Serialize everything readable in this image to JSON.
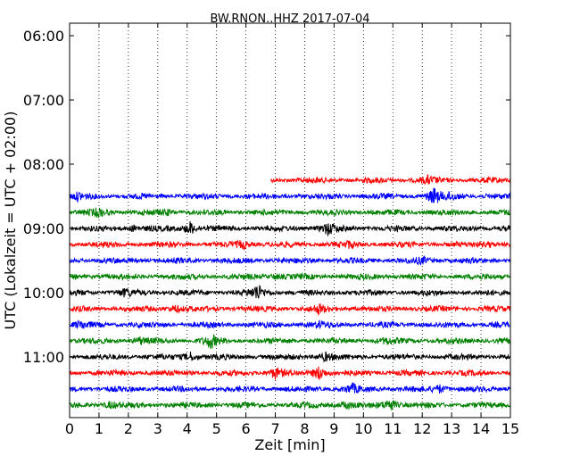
{
  "chart_data": {
    "type": "line",
    "title": "BW.RNON..HHZ 2017-07-04",
    "xlabel": "Zeit  [min]",
    "ylabel": "UTC (Lokalzeit = UTC + 02:00)",
    "xlim": [
      0,
      15
    ],
    "x_ticks": [
      "0",
      "1",
      "2",
      "3",
      "4",
      "5",
      "6",
      "7",
      "8",
      "9",
      "10",
      "11",
      "12",
      "13",
      "14",
      "15"
    ],
    "y_ticks": [
      "06:00",
      "07:00",
      "08:00",
      "09:00",
      "10:00",
      "11:00"
    ],
    "grid": "vertical dotted",
    "trace_colors": [
      "#ff0000",
      "#0000ff",
      "#008000",
      "#000000"
    ],
    "series": [
      {
        "start": "08:15",
        "x_start": 6.85,
        "x_end": 15,
        "color": "#ff0000",
        "events": [
          [
            12.2,
            0.4
          ]
        ]
      },
      {
        "start": "08:30",
        "x_start": 0,
        "x_end": 15,
        "color": "#0000ff",
        "events": [
          [
            0.3,
            0.4
          ],
          [
            12.4,
            1.0
          ],
          [
            13.0,
            0.5
          ]
        ]
      },
      {
        "start": "08:45",
        "x_start": 0,
        "x_end": 15,
        "color": "#008000",
        "events": [
          [
            1.0,
            0.5
          ],
          [
            3.3,
            0.3
          ]
        ]
      },
      {
        "start": "09:00",
        "x_start": 0,
        "x_end": 15,
        "color": "#000000",
        "events": [
          [
            2.2,
            0.4
          ],
          [
            4.1,
            0.9
          ],
          [
            8.8,
            0.8
          ]
        ]
      },
      {
        "start": "09:15",
        "x_start": 0,
        "x_end": 15,
        "color": "#ff0000",
        "events": [
          [
            5.9,
            0.5
          ],
          [
            9.5,
            0.3
          ],
          [
            14.3,
            0.3
          ]
        ]
      },
      {
        "start": "09:30",
        "x_start": 0,
        "x_end": 15,
        "color": "#0000ff",
        "events": [
          [
            12.0,
            0.3
          ]
        ]
      },
      {
        "start": "09:45",
        "x_start": 0,
        "x_end": 15,
        "color": "#008000",
        "events": [
          [
            7.0,
            0.3
          ]
        ]
      },
      {
        "start": "10:00",
        "x_start": 0,
        "x_end": 15,
        "color": "#000000",
        "events": [
          [
            1.9,
            0.4
          ],
          [
            6.4,
            1.0
          ]
        ]
      },
      {
        "start": "10:15",
        "x_start": 0,
        "x_end": 15,
        "color": "#ff0000",
        "events": [
          [
            3.6,
            0.5
          ],
          [
            8.5,
            0.5
          ]
        ]
      },
      {
        "start": "10:30",
        "x_start": 0,
        "x_end": 15,
        "color": "#0000ff",
        "events": [
          [
            0.4,
            0.4
          ],
          [
            8.5,
            0.3
          ]
        ]
      },
      {
        "start": "10:45",
        "x_start": 0,
        "x_end": 15,
        "color": "#008000",
        "events": [
          [
            2.4,
            0.4
          ],
          [
            4.8,
            0.9
          ],
          [
            10.8,
            0.3
          ]
        ]
      },
      {
        "start": "11:00",
        "x_start": 0,
        "x_end": 15,
        "color": "#000000",
        "events": [
          [
            4.1,
            0.6
          ],
          [
            8.7,
            0.5
          ]
        ]
      },
      {
        "start": "11:15",
        "x_start": 0,
        "x_end": 15,
        "color": "#ff0000",
        "events": [
          [
            7.0,
            0.7
          ],
          [
            8.5,
            1.0
          ]
        ]
      },
      {
        "start": "11:30",
        "x_start": 0,
        "x_end": 15,
        "color": "#0000ff",
        "events": [
          [
            9.6,
            0.6
          ],
          [
            12.6,
            0.5
          ]
        ]
      },
      {
        "start": "11:45",
        "x_start": 0,
        "x_end": 15,
        "color": "#008000",
        "events": [
          [
            1.4,
            0.4
          ],
          [
            9.4,
            0.5
          ],
          [
            10.9,
            0.9
          ]
        ]
      }
    ]
  }
}
